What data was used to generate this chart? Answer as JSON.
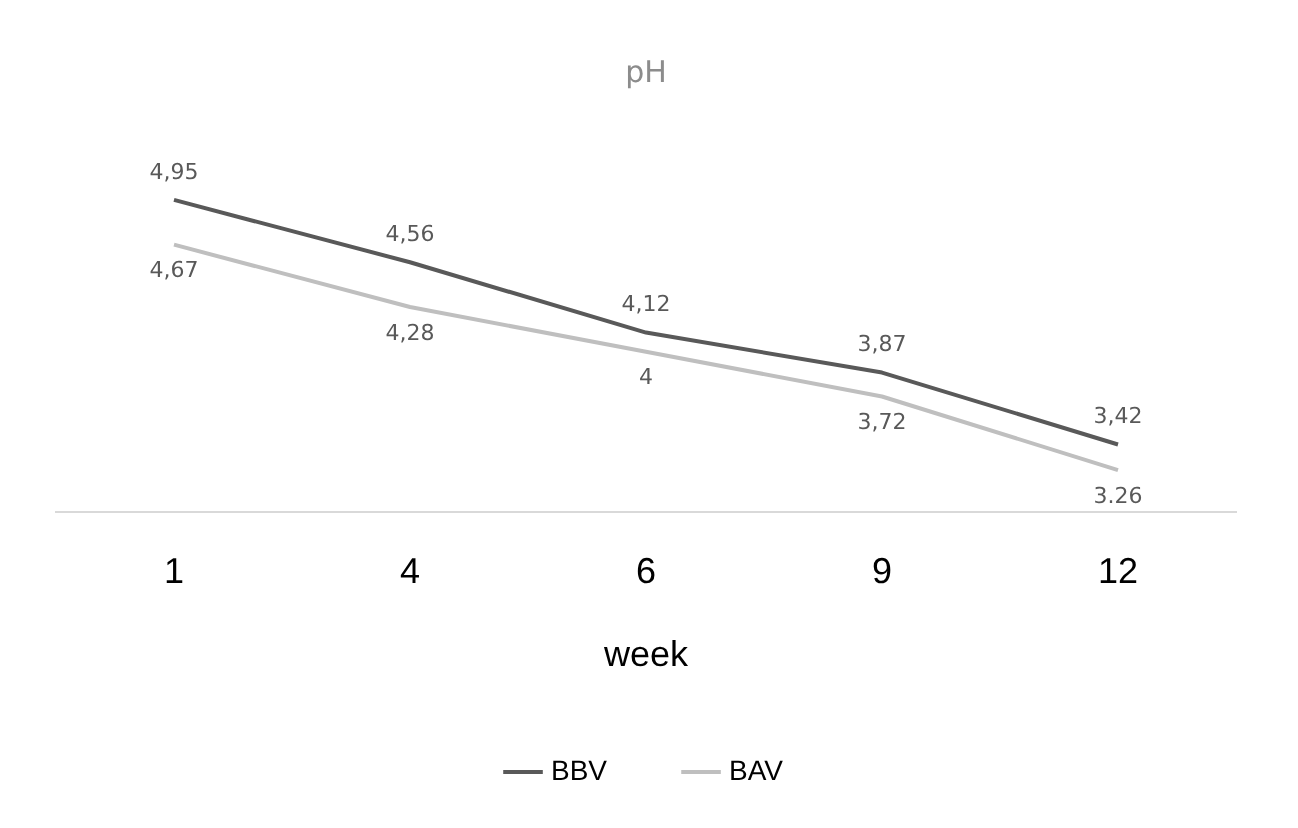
{
  "chart_data": {
    "type": "line",
    "title": "pH",
    "xlabel": "week",
    "categories": [
      "1",
      "4",
      "6",
      "9",
      "12"
    ],
    "series": [
      {
        "name": "BBV",
        "color": "#595959",
        "values": [
          4.95,
          4.56,
          4.12,
          3.87,
          3.42
        ],
        "value_labels": [
          "4,95",
          "4,56",
          "4,12",
          "3,87",
          "3,42"
        ]
      },
      {
        "name": "BAV",
        "color": "#bfbfbf",
        "values": [
          4.67,
          4.28,
          4,
          3.72,
          3.26
        ],
        "value_labels": [
          "4,67",
          "4,28",
          "4",
          "3,72",
          "3.26"
        ]
      }
    ],
    "legend": "bottom",
    "grid": false,
    "marker": "none",
    "line_style": "solid",
    "tick_labels": "x"
  }
}
